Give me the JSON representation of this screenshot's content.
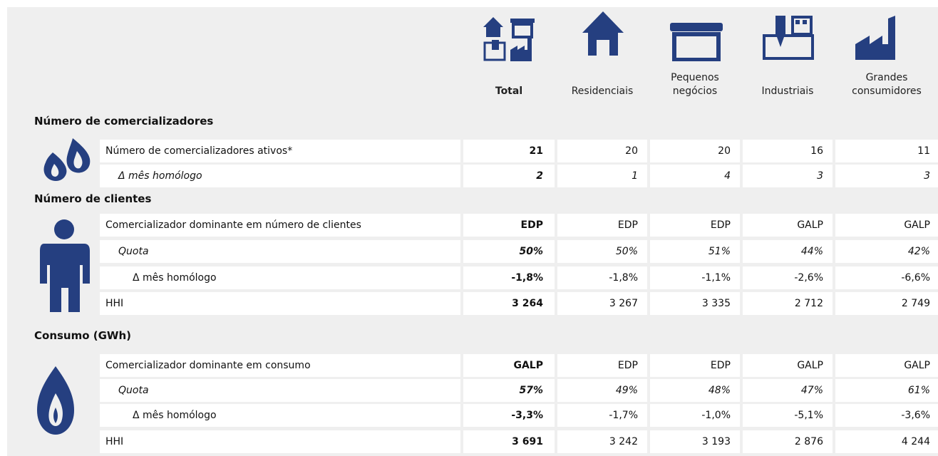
{
  "columns": [
    "Total",
    "Residenciais",
    "Pequenos negócios",
    "Industriais",
    "Grandes consumidores"
  ],
  "sections": [
    {
      "title": "Número de comercializadores",
      "rows": [
        {
          "label": "Número de comercializadores ativos*",
          "values": [
            "21",
            "20",
            "20",
            "16",
            "11"
          ]
        },
        {
          "label": "Δ mês homólogo",
          "values": [
            "2",
            "1",
            "4",
            "3",
            "3"
          ]
        }
      ]
    },
    {
      "title": "Número de clientes",
      "rows": [
        {
          "label": "Comercializador dominante em número de clientes",
          "values": [
            "EDP",
            "EDP",
            "EDP",
            "GALP",
            "GALP"
          ]
        },
        {
          "label": "Quota",
          "values": [
            "50%",
            "50%",
            "51%",
            "44%",
            "42%"
          ]
        },
        {
          "label": "Δ mês homólogo",
          "values": [
            "-1,8%",
            "-1,8%",
            "-1,1%",
            "-2,6%",
            "-6,6%"
          ]
        },
        {
          "label": "HHI",
          "values": [
            "3 264",
            "3 267",
            "3 335",
            "2 712",
            "2 749"
          ]
        }
      ]
    },
    {
      "title": "Consumo (GWh)",
      "rows": [
        {
          "label": "Comercializador dominante em consumo",
          "values": [
            "GALP",
            "EDP",
            "EDP",
            "GALP",
            "GALP"
          ]
        },
        {
          "label": "Quota",
          "values": [
            "57%",
            "49%",
            "48%",
            "47%",
            "61%"
          ]
        },
        {
          "label": "Δ mês homólogo",
          "values": [
            "-3,3%",
            "-1,7%",
            "-1,0%",
            "-5,1%",
            "-3,6%"
          ]
        },
        {
          "label": "HHI",
          "values": [
            "3 691",
            "3 242",
            "3 193",
            "2 876",
            "4 244"
          ]
        }
      ]
    }
  ]
}
